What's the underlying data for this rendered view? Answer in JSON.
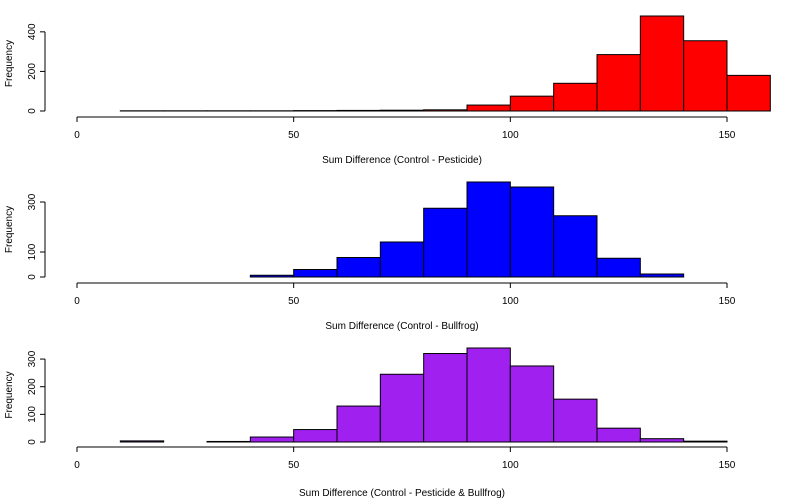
{
  "chart_data": [
    {
      "type": "bar",
      "bin_edges": [
        10,
        20,
        30,
        40,
        50,
        60,
        70,
        80,
        90,
        100,
        110,
        120,
        130,
        140,
        150,
        160
      ],
      "values": [
        1,
        1,
        1,
        1,
        2,
        3,
        4,
        6,
        30,
        75,
        140,
        285,
        480,
        355,
        180,
        15
      ],
      "color": "#ff0000",
      "xlabel": "Sum Difference (Control - Pesticide)",
      "ylabel": "Frequency",
      "xlim": [
        0,
        150
      ],
      "xticks": [
        "0",
        "50",
        "100",
        "150"
      ],
      "ylim": [
        0,
        480
      ],
      "yticks": [
        "0",
        "200",
        "400"
      ]
    },
    {
      "type": "bar",
      "bin_edges": [
        10,
        20,
        30,
        40,
        50,
        60,
        70,
        80,
        90,
        100,
        110,
        120,
        130,
        140
      ],
      "values": [
        0,
        0,
        0,
        7,
        30,
        78,
        140,
        275,
        380,
        360,
        245,
        75,
        12
      ],
      "color": "#0000ff",
      "xlabel": "Sum Difference (Control - Bullfrog)",
      "ylabel": "Frequency",
      "xlim": [
        0,
        150
      ],
      "xticks": [
        "0",
        "50",
        "100",
        "150"
      ],
      "ylim": [
        0,
        380
      ],
      "yticks": [
        "0",
        "100",
        "300"
      ]
    },
    {
      "type": "bar",
      "bin_edges": [
        10,
        20,
        30,
        40,
        50,
        60,
        70,
        80,
        90,
        100,
        110,
        120,
        130,
        140,
        150
      ],
      "values": [
        4,
        0,
        2,
        18,
        45,
        130,
        245,
        320,
        340,
        275,
        155,
        50,
        12,
        3
      ],
      "color": "#a020f0",
      "xlabel": "Sum Difference (Control - Pesticide & Bullfrog)",
      "ylabel": "Frequency",
      "xlim": [
        0,
        150
      ],
      "xticks": [
        "0",
        "50",
        "100",
        "150"
      ],
      "ylim": [
        0,
        340
      ],
      "yticks": [
        "0",
        "100",
        "200",
        "300"
      ]
    }
  ]
}
